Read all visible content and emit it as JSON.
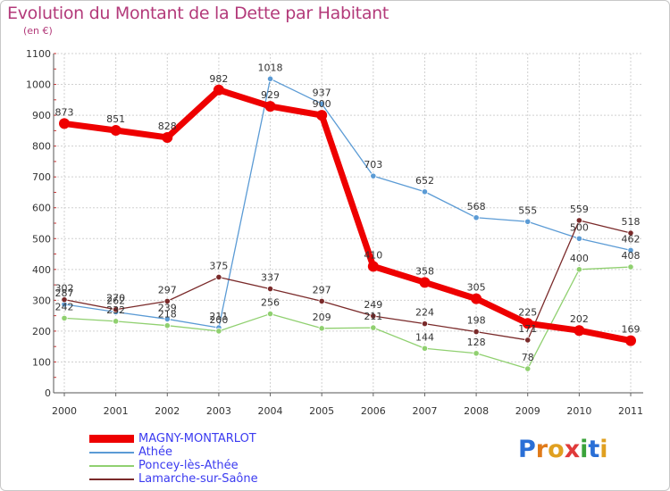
{
  "title": "Evolution du Montant de la Dette par Habitant",
  "subtitle": "(en €)",
  "logo": {
    "chars": [
      "P",
      "r",
      "o",
      "x",
      "i",
      "t",
      "i"
    ],
    "colors": [
      "#2a6fd6",
      "#e07a1a",
      "#e0a020",
      "#e03a3a",
      "#3aa33a",
      "#2a6fd6",
      "#e0a020"
    ]
  },
  "chart_data": {
    "type": "line",
    "title": "Evolution du Montant de la Dette par Habitant",
    "ylabel": "(en €)",
    "xlabel": "",
    "x": [
      "2000",
      "2001",
      "2002",
      "2003",
      "2004",
      "2005",
      "2006",
      "2007",
      "2008",
      "2009",
      "2010",
      "2011"
    ],
    "ylim": [
      0,
      1100
    ],
    "yticks": [
      "0",
      "100",
      "200",
      "300",
      "400",
      "500",
      "600",
      "700",
      "800",
      "900",
      "1000",
      "1100"
    ],
    "grid": true,
    "series": [
      {
        "name": "MAGNY-MONTARLOT",
        "color": "#ee0000",
        "width": 7,
        "marker": 6,
        "values": [
          873,
          851,
          828,
          982,
          929,
          900,
          410,
          358,
          305,
          225,
          202,
          169
        ],
        "labels": [
          "873",
          "851",
          "828",
          "982",
          "929",
          "900",
          "410",
          "358",
          "305",
          "225",
          "202",
          "169"
        ]
      },
      {
        "name": "Athée",
        "color": "#5b9bd5",
        "width": 1.3,
        "marker": 3.2,
        "values": [
          287,
          262,
          239,
          211,
          1018,
          937,
          703,
          652,
          568,
          555,
          500,
          462
        ],
        "labels": [
          "287",
          "262",
          "239",
          "211",
          "1018",
          "937",
          "703",
          "652",
          "568",
          "555",
          "500",
          "462"
        ]
      },
      {
        "name": "Poncey-lès-Athée",
        "color": "#90d070",
        "width": 1.3,
        "marker": 3.2,
        "values": [
          242,
          232,
          218,
          200,
          256,
          209,
          211,
          144,
          128,
          78,
          400,
          408
        ],
        "labels": [
          "242",
          "232",
          "218",
          "200",
          "256",
          "209",
          "211",
          "144",
          "128",
          "78",
          "400",
          "408"
        ]
      },
      {
        "name": "Lamarche-sur-Saône",
        "color": "#7a2a2a",
        "width": 1.3,
        "marker": 3.2,
        "values": [
          302,
          270,
          297,
          375,
          337,
          297,
          249,
          224,
          198,
          171,
          559,
          518
        ],
        "labels": [
          "302",
          "270",
          "297",
          "375",
          "337",
          "297",
          "249",
          "224",
          "198",
          "171",
          "559",
          "518"
        ]
      }
    ]
  }
}
